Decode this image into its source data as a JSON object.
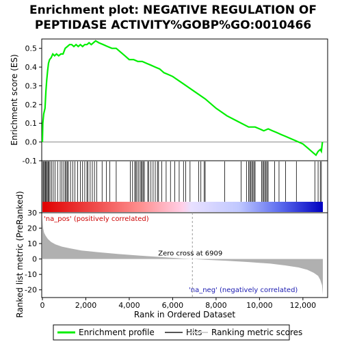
{
  "title_line1": "Enrichment plot: NEGATIVE REGULATION OF",
  "title_line2": "PEPTIDASE ACTIVITY%GOBP%GO:0010466",
  "chart_data": {
    "type": "line",
    "es_panel": {
      "ylabel": "Enrichment score (ES)",
      "ylim": [
        -0.1,
        0.55
      ],
      "yticks": [
        -0.1,
        0.0,
        0.1,
        0.2,
        0.3,
        0.4,
        0.5
      ],
      "ytick_labels": [
        "-0.1",
        "0.0",
        "0.1",
        "0.2",
        "0.3",
        "0.4",
        "0.5"
      ],
      "series": [
        {
          "name": "Enrichment profile",
          "color": "#00ee00",
          "x": [
            0,
            20,
            60,
            120,
            160,
            200,
            240,
            280,
            330,
            400,
            480,
            560,
            650,
            750,
            850,
            950,
            1050,
            1150,
            1250,
            1350,
            1450,
            1550,
            1650,
            1750,
            1850,
            1950,
            2050,
            2150,
            2250,
            2350,
            2450,
            2600,
            2800,
            3000,
            3200,
            3400,
            3600,
            3800,
            4000,
            4200,
            4400,
            4600,
            4800,
            5000,
            5200,
            5400,
            5600,
            5800,
            6000,
            6500,
            7000,
            7500,
            8000,
            8500,
            9000,
            9500,
            9800,
            10000,
            10200,
            10400,
            10600,
            10800,
            11000,
            11200,
            11400,
            11600,
            11800,
            12000,
            12200,
            12400,
            12600,
            12700,
            12800,
            12850,
            12900
          ],
          "y": [
            0.0,
            0.1,
            0.15,
            0.18,
            0.27,
            0.33,
            0.38,
            0.42,
            0.44,
            0.45,
            0.47,
            0.46,
            0.47,
            0.46,
            0.47,
            0.47,
            0.5,
            0.51,
            0.52,
            0.52,
            0.51,
            0.52,
            0.51,
            0.52,
            0.51,
            0.52,
            0.52,
            0.53,
            0.52,
            0.53,
            0.54,
            0.53,
            0.52,
            0.51,
            0.5,
            0.5,
            0.48,
            0.46,
            0.44,
            0.44,
            0.43,
            0.43,
            0.42,
            0.41,
            0.4,
            0.39,
            0.37,
            0.36,
            0.35,
            0.31,
            0.27,
            0.23,
            0.18,
            0.14,
            0.11,
            0.08,
            0.08,
            0.07,
            0.06,
            0.07,
            0.06,
            0.05,
            0.04,
            0.03,
            0.02,
            0.01,
            0.0,
            -0.01,
            -0.03,
            -0.05,
            -0.07,
            -0.05,
            -0.04,
            -0.05,
            0.0
          ]
        }
      ]
    },
    "hits": [
      25,
      60,
      100,
      140,
      180,
      220,
      260,
      300,
      350,
      420,
      500,
      580,
      700,
      820,
      900,
      980,
      1050,
      1100,
      1150,
      1200,
      1300,
      1400,
      1500,
      1620,
      1750,
      1850,
      1950,
      2050,
      2100,
      2200,
      2300,
      2400,
      2500,
      2750,
      2950,
      3100,
      3400,
      4050,
      4150,
      4250,
      4300,
      4350,
      4420,
      4500,
      4550,
      4600,
      4650,
      4700,
      4850,
      4900,
      5000,
      5100,
      5200,
      5300,
      5350,
      5500,
      5700,
      5900,
      6100,
      6300,
      6500,
      6600,
      6800,
      7200,
      7300,
      7450,
      7500,
      8400,
      9150,
      9400,
      9500,
      9550,
      9600,
      9650,
      9700,
      9750,
      9800,
      10100,
      10150,
      10200,
      10250,
      10300,
      10350,
      10400,
      10700,
      10900,
      11200,
      11700,
      12550,
      12700,
      12800,
      12850
    ],
    "ranked_metric_panel": {
      "ylabel": "Ranked list metric (PreRanked)",
      "ylim": [
        -25,
        30
      ],
      "yticks": [
        -20,
        -10,
        0,
        10,
        20,
        30
      ],
      "ytick_labels": [
        "-20",
        "-10",
        "0",
        "10",
        "20",
        "30"
      ],
      "x": [
        0,
        30,
        80,
        150,
        250,
        400,
        600,
        900,
        1300,
        1800,
        2500,
        3500,
        4500,
        5500,
        6500,
        6909,
        7500,
        8500,
        9500,
        10500,
        11200,
        11800,
        12200,
        12500,
        12700,
        12800,
        12880,
        12920
      ],
      "y": [
        27,
        20,
        17,
        15,
        13,
        11,
        9.5,
        8,
        6.8,
        5.5,
        4.5,
        3.2,
        2.2,
        1.2,
        0.3,
        0.0,
        -0.5,
        -1.2,
        -2.0,
        -3.0,
        -4.2,
        -5.5,
        -7.0,
        -9.0,
        -11.0,
        -13.5,
        -17.0,
        -23.0
      ],
      "color": "#b0b0b0"
    },
    "xlabel": "Rank in Ordered Dataset",
    "xlim": [
      0,
      12950
    ],
    "xticks": [
      0,
      2000,
      4000,
      6000,
      8000,
      10000,
      12000
    ],
    "xtick_labels": [
      "0",
      "2,000",
      "4,000",
      "6,000",
      "8,000",
      "10,000",
      "12,000"
    ],
    "zero_cross": 6909,
    "zero_cross_label": "Zero cross at 6909",
    "pos_label": "'na_pos' (positively correlated)",
    "neg_label": "'na_neg' (negatively correlated)",
    "colors": {
      "hit_line": "#000000",
      "pos_strong": "#dd0000",
      "pos_light": "#ffc0c0",
      "neg_light": "#c8c8ff",
      "neg_strong": "#0000cc"
    }
  },
  "legend": {
    "items": [
      {
        "label": "Enrichment profile",
        "color": "#00ee00"
      },
      {
        "label": "Hits",
        "color": "#555555"
      },
      {
        "label": "Ranking metric scores",
        "color": "#d0d0d0"
      }
    ]
  }
}
